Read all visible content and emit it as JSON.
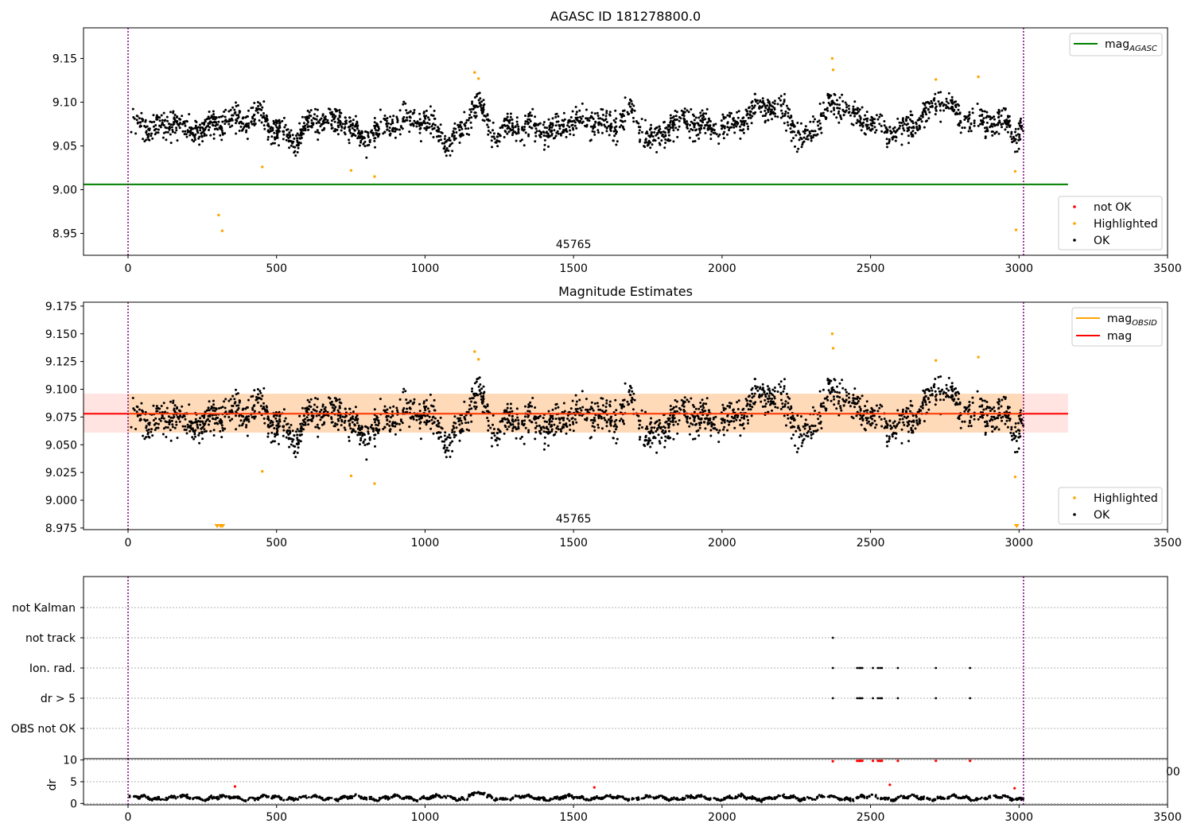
{
  "figure": {
    "title": "AGASC ID 181278800.0",
    "colors": {
      "ok": "#000000",
      "highlighted": "#ffa500",
      "not_ok": "#ff0000",
      "mag_agasc": "#008000",
      "mag_obsid": "#ffa500",
      "mag": "#ff0000",
      "obs_boundary": "#800080",
      "band_inner": "#ffdab9",
      "band_outer": "#ffe4e1"
    }
  },
  "chart_data": [
    {
      "type": "scatter",
      "title": "AGASC ID 181278800.0",
      "xlabel": "",
      "ylabel": "",
      "xlim": [
        -150,
        3500
      ],
      "ylim": [
        8.925,
        9.185
      ],
      "xticks": [
        "0",
        "500",
        "1000",
        "1500",
        "2000",
        "2500",
        "3000",
        "3500"
      ],
      "yticks": [
        "8.95",
        "9.00",
        "9.05",
        "9.10",
        "9.15"
      ],
      "obs_boundaries": [
        0,
        3015
      ],
      "obs_label": {
        "text": "45765",
        "x": 1500
      },
      "mag_agasc_line": {
        "value": 9.006,
        "x_range": [
          -150,
          3165
        ]
      },
      "legend_lines": [
        {
          "name": "mag_AGASC",
          "main": "mag",
          "sub": "AGASC",
          "color": "#008000"
        }
      ],
      "legend_points": [
        {
          "name": "not OK",
          "color": "#ff0000"
        },
        {
          "name": "Highlighted",
          "color": "#ffa500"
        },
        {
          "name": "OK",
          "color": "#000000"
        }
      ],
      "ok_series": {
        "name": "OK",
        "x_range": [
          0,
          3015
        ],
        "count": 2400,
        "note": "dense scatter around 9.05-9.11"
      },
      "highlighted": [
        [
          305,
          8.971
        ],
        [
          317,
          8.953
        ],
        [
          452,
          9.026
        ],
        [
          751,
          9.022
        ],
        [
          830,
          9.015
        ],
        [
          1167,
          9.134
        ],
        [
          1180,
          9.127
        ],
        [
          2371,
          9.15
        ],
        [
          2374,
          9.137
        ],
        [
          2720,
          9.126
        ],
        [
          2863,
          9.129
        ],
        [
          2987,
          9.021
        ],
        [
          2990,
          8.954
        ]
      ]
    },
    {
      "type": "scatter",
      "title": "Magnitude Estimates",
      "xlabel": "",
      "ylabel": "",
      "xlim": [
        -150,
        3500
      ],
      "ylim": [
        8.9735,
        9.1785
      ],
      "xticks": [
        "0",
        "500",
        "1000",
        "1500",
        "2000",
        "2500",
        "3000",
        "3500"
      ],
      "yticks": [
        "8.975",
        "9.000",
        "9.025",
        "9.050",
        "9.075",
        "9.100",
        "9.125",
        "9.150",
        "9.175"
      ],
      "obs_boundaries": [
        0,
        3015
      ],
      "obs_label": {
        "text": "45765",
        "x": 1500
      },
      "mag_line": {
        "value": 9.078,
        "x_range": [
          -150,
          3165
        ]
      },
      "band_obsid": {
        "low": 9.061,
        "high": 9.096,
        "x_range": [
          0,
          3015
        ]
      },
      "band_mag": {
        "low": 9.061,
        "high": 9.096,
        "x_range": [
          -150,
          3165
        ]
      },
      "legend_lines": [
        {
          "name": "mag_OBSID",
          "main": "mag",
          "sub": "OBSID",
          "color": "#ffa500"
        },
        {
          "name": "mag",
          "main": "mag",
          "sub": "",
          "color": "#ff0000"
        }
      ],
      "legend_points": [
        {
          "name": "Highlighted",
          "color": "#ffa500"
        },
        {
          "name": "OK",
          "color": "#000000"
        }
      ],
      "highlighted": [
        [
          452,
          9.026
        ],
        [
          751,
          9.022
        ],
        [
          830,
          9.015
        ],
        [
          1167,
          9.134
        ],
        [
          1180,
          9.127
        ],
        [
          2371,
          9.15
        ],
        [
          2374,
          9.137
        ],
        [
          2720,
          9.126
        ],
        [
          2863,
          9.129
        ],
        [
          2987,
          9.021
        ]
      ],
      "below_range_markers": [
        300,
        312,
        318,
        2992
      ]
    },
    {
      "type": "scatter",
      "title": "",
      "xlabel": "",
      "ylabel": "",
      "xlim": [
        -150,
        3500
      ],
      "categories": [
        "not Kalman",
        "not track",
        "Ion. rad.",
        "dr > 5",
        "OBS not OK"
      ],
      "obs_boundaries": [
        0,
        3015
      ],
      "flags": {
        "not track": [
          2373
        ],
        "Ion. rad.": [
          2373,
          2455,
          2462,
          2466,
          2472,
          2508,
          2525,
          2532,
          2538,
          2592,
          2720,
          2835
        ],
        "dr > 5": [
          2373,
          2455,
          2462,
          2466,
          2472,
          2508,
          2525,
          2532,
          2538,
          2592,
          2720,
          2835
        ]
      }
    },
    {
      "type": "scatter",
      "title": "",
      "xlabel": "",
      "ylabel": "dr",
      "xlim": [
        -150,
        3500
      ],
      "ylim": [
        -0.3,
        10.3
      ],
      "xticks": [
        "0",
        "500",
        "1000",
        "1500",
        "2000",
        "2500",
        "3000",
        "3500"
      ],
      "yticks": [
        "0",
        "5",
        "10"
      ],
      "stray_tick_text": "00",
      "ok_series": {
        "name": "OK",
        "x_range": [
          0,
          3015
        ],
        "typical": [
          0.5,
          2.2
        ]
      },
      "not_ok_points": [
        [
          360,
          3.9
        ],
        [
          1570,
          3.7
        ],
        [
          2565,
          4.3
        ],
        [
          2985,
          3.5
        ],
        [
          2373,
          9.7
        ],
        [
          2455,
          9.8
        ],
        [
          2462,
          9.8
        ],
        [
          2466,
          9.8
        ],
        [
          2472,
          9.8
        ],
        [
          2508,
          9.8
        ],
        [
          2525,
          9.8
        ],
        [
          2532,
          9.8
        ],
        [
          2538,
          9.8
        ],
        [
          2592,
          9.8
        ],
        [
          2720,
          9.8
        ],
        [
          2835,
          9.8
        ]
      ]
    }
  ]
}
